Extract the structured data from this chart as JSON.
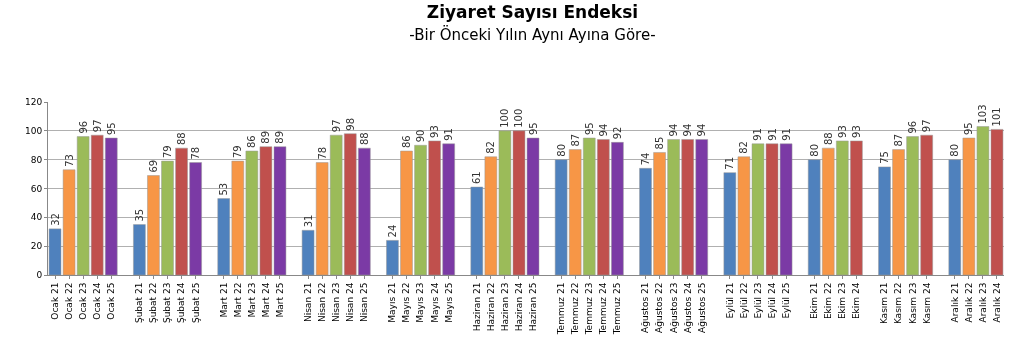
{
  "chart_data": {
    "type": "bar",
    "title": "Ziyaret Sayısı Endeksi",
    "subtitle": "-Bir Önceki Yılın Aynı Ayına Göre-",
    "categories": [
      "Ocak 21",
      "Ocak 22",
      "Ocak 23",
      "Ocak 24",
      "Ocak 25",
      null,
      "Şubat 21",
      "Şubat 22",
      "Şubat 23",
      "Şubat 24",
      "Şubat 25",
      null,
      "Mart 21",
      "Mart 22",
      "Mart 23",
      "Mart 24",
      "Mart 25",
      null,
      "Nisan 21",
      "Nisan 22",
      "Nisan 23",
      "Nisan 24",
      "Nisan 25",
      null,
      "Mayıs 21",
      "Mayıs 22",
      "Mayıs 23",
      "Mayıs 24",
      "Mayıs 25",
      null,
      "Haziran 21",
      "Haziran 22",
      "Haziran 23",
      "Haziran 24",
      "Haziran 25",
      null,
      "Temmuz 21",
      "Temmuz 22",
      "Temmuz 23",
      "Temmuz 24",
      "Temmuz 25",
      null,
      "Ağustos 21",
      "Ağustos 22",
      "Ağustos 23",
      "Ağustos 24",
      "Ağustos 25",
      null,
      "Eylül 21",
      "Eylül 22",
      "Eylül 23",
      "Eylül 24",
      "Eylül 25",
      null,
      "Ekim 21",
      "Ekim 22",
      "Ekim 23",
      "Ekim 24",
      null,
      "Kasım 21",
      "Kasım 22",
      "Kasım 23",
      "Kasım 24",
      null,
      "Aralık 21",
      "Aralık 22",
      "Aralık 23",
      "Aralık 24"
    ],
    "values": [
      32,
      73,
      96,
      97,
      95,
      null,
      35,
      69,
      79,
      88,
      78,
      null,
      53,
      79,
      86,
      89,
      89,
      null,
      31,
      78,
      97,
      98,
      88,
      null,
      24,
      86,
      90,
      93,
      91,
      null,
      61,
      82,
      100,
      100,
      95,
      null,
      80,
      87,
      95,
      94,
      92,
      null,
      74,
      85,
      94,
      94,
      94,
      null,
      71,
      82,
      91,
      91,
      91,
      null,
      80,
      88,
      93,
      93,
      null,
      75,
      87,
      96,
      97,
      null,
      80,
      95,
      103,
      101
    ],
    "colors": [
      "#4f81bd",
      "#f79646",
      "#9bbb59",
      "#c0504d",
      "#7b3aa5",
      null,
      "#4f81bd",
      "#f79646",
      "#9bbb59",
      "#c0504d",
      "#7b3aa5",
      null,
      "#4f81bd",
      "#f79646",
      "#9bbb59",
      "#c0504d",
      "#7b3aa5",
      null,
      "#4f81bd",
      "#f79646",
      "#9bbb59",
      "#c0504d",
      "#7b3aa5",
      null,
      "#4f81bd",
      "#f79646",
      "#9bbb59",
      "#c0504d",
      "#7b3aa5",
      null,
      "#4f81bd",
      "#f79646",
      "#9bbb59",
      "#c0504d",
      "#7b3aa5",
      null,
      "#4f81bd",
      "#f79646",
      "#9bbb59",
      "#c0504d",
      "#7b3aa5",
      null,
      "#4f81bd",
      "#f79646",
      "#9bbb59",
      "#c0504d",
      "#7b3aa5",
      null,
      "#4f81bd",
      "#f79646",
      "#9bbb59",
      "#c0504d",
      "#7b3aa5",
      null,
      "#4f81bd",
      "#f79646",
      "#9bbb59",
      "#c0504d",
      null,
      "#4f81bd",
      "#f79646",
      "#9bbb59",
      "#c0504d",
      null,
      "#4f81bd",
      "#f79646",
      "#9bbb59",
      "#c0504d"
    ],
    "ylim": [
      0,
      120
    ],
    "yticks": [
      0,
      20,
      40,
      60,
      80,
      100,
      120
    ],
    "grid": "y",
    "data_labels": true
  }
}
